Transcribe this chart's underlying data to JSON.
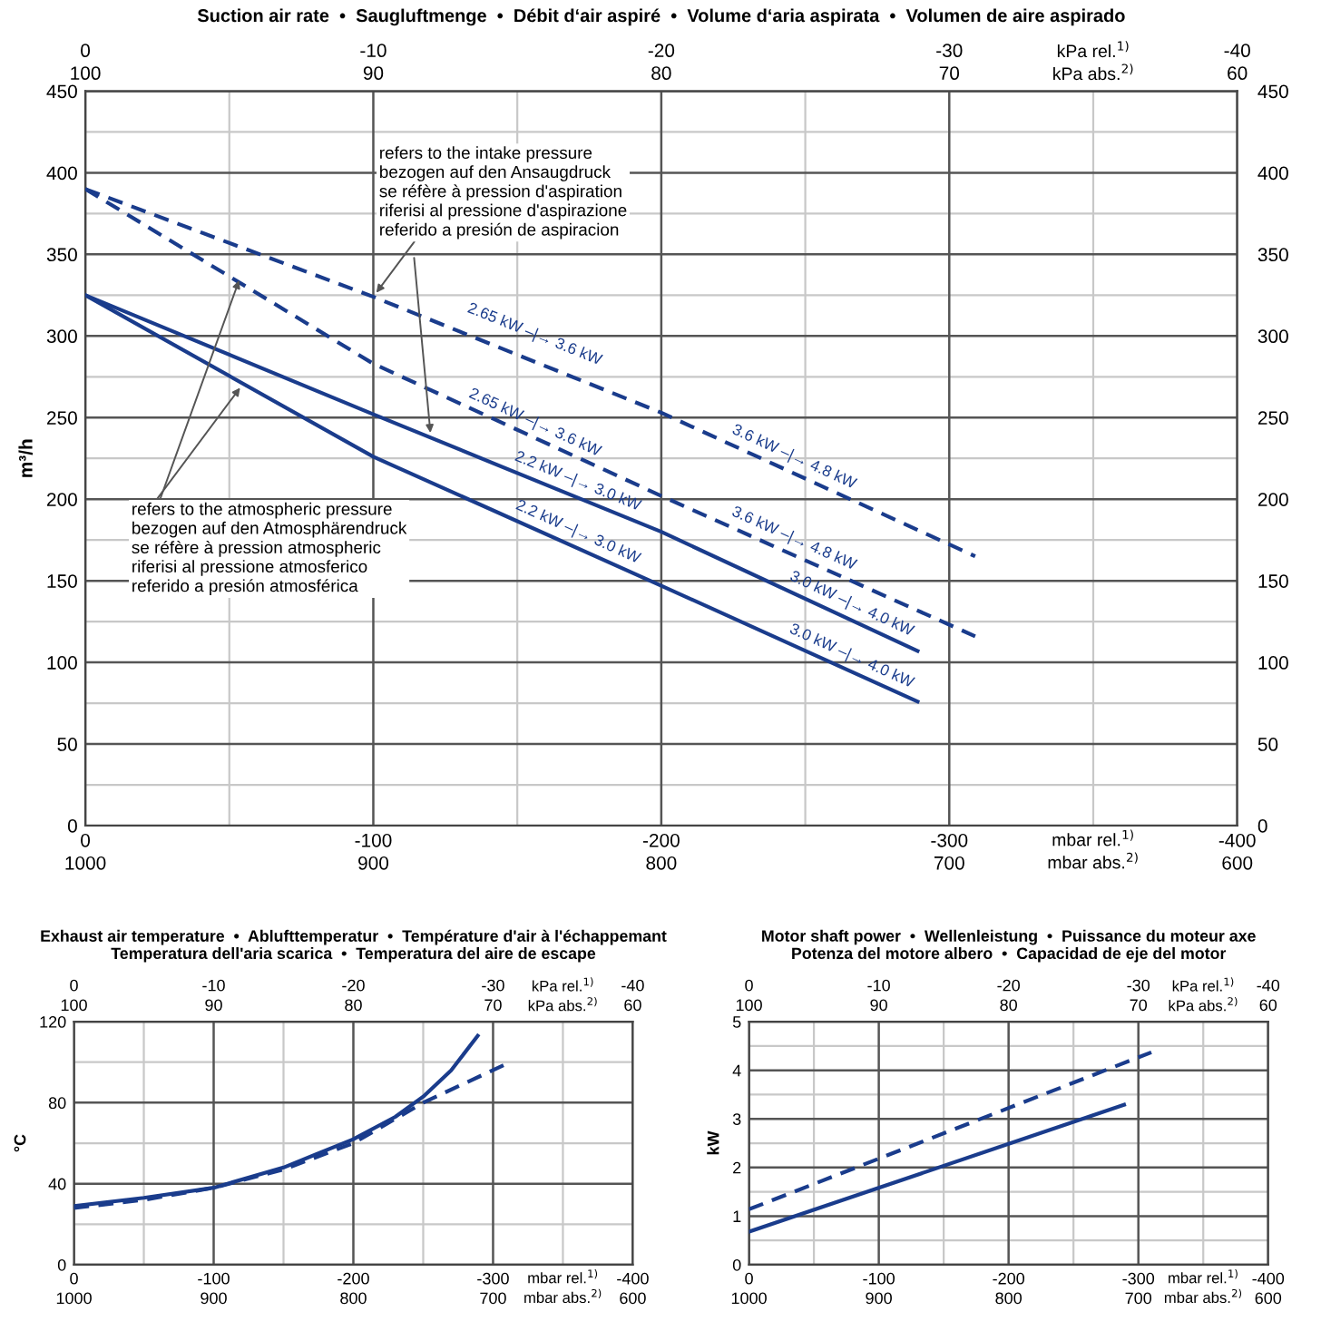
{
  "chart_data": [
    {
      "type": "line",
      "title": "Suction air rate  •  Saugluftmenge  •  Débit d‘air aspiré  •  Volume d‘aria aspirata  •  Volumen de aire aspirado",
      "xlabel": "mbar rel.$^{1)}$",
      "x2label": "kPa rel.$^{1)}$",
      "ylabel": "m³/h",
      "xlim": [
        0,
        -400
      ],
      "xticks": [
        0,
        -100,
        -200,
        -300,
        -400
      ],
      "x2lim": [
        0,
        -40
      ],
      "x2ticks": [
        0,
        -10,
        -20,
        -30,
        -40
      ],
      "ylim": [
        0,
        450
      ],
      "yticks": [
        0,
        50,
        100,
        150,
        200,
        250,
        300,
        350,
        400,
        450
      ],
      "y2lim": [
        0,
        450
      ],
      "y2ticks": [
        0,
        50,
        100,
        150,
        200,
        250,
        300,
        350,
        400,
        450
      ],
      "grid": true,
      "series": [
        {
          "color": "#1a3c8c",
          "line_style": "dashed",
          "x": [
            0,
            -100,
            -200,
            -309
          ],
          "values": [
            390,
            324,
            253,
            165
          ]
        },
        {
          "color": "#1a3c8c",
          "line_style": "dashed",
          "x": [
            0,
            -100,
            -200,
            -309
          ],
          "values": [
            390,
            283,
            202,
            116
          ]
        },
        {
          "color": "#1a3c8c",
          "line_style": "solid",
          "x": [
            0,
            -100,
            -200,
            -289
          ],
          "values": [
            325,
            252,
            180,
            107
          ]
        },
        {
          "color": "#1a3c8c",
          "line_style": "solid",
          "x": [
            0,
            -100,
            -200,
            -289
          ],
          "values": [
            325,
            226,
            147,
            76
          ]
        }
      ],
      "annotations": [
        "1000",
        "900",
        "800",
        "700",
        "600",
        "mbar abs.$^{2)}$",
        "100",
        "90",
        "80",
        "70",
        "60",
        "kPa abs.$^{2)}$",
        {
          "text": "2.65 kW –|→ 3.6 kW",
          "x": -155,
          "y": 292
        },
        {
          "text": "2.65 kW –|→ 3.6 kW",
          "x": -155,
          "y": 238
        },
        {
          "text": "3.6 kW –|→ 4.8 kW",
          "x": -245,
          "y": 217
        },
        {
          "text": "3.6 kW –|→ 4.8 kW",
          "x": -245,
          "y": 167
        },
        {
          "text": "2.2 kW –|→ 3.0 kW",
          "x": -170,
          "y": 202
        },
        {
          "text": "2.2 kW –|→ 3.0 kW",
          "x": -170,
          "y": 171
        },
        {
          "text": "3.0 kW –|→ 4.0 kW",
          "x": -265,
          "y": 127
        },
        {
          "text": "3.0 kW –|→ 4.0 kW",
          "x": -265,
          "y": 95
        },
        {
          "text": "refers to the intake pressure\nbezogen auf den Ansaugdruck\nse réfère à pression d'aspiration\nriferisi al pressione d'aspirazione\nreferido a presión de aspiracion",
          "x": -100,
          "y": 324
        },
        {
          "text": "refers to the atmospheric pressure\nbezogen auf den Atmosphärendruck\nse réfère à pression atmospheric\nriferisi al pressione atmosferico\nreferido a presión atmosférica",
          "x": -54,
          "y": 337
        }
      ]
    },
    {
      "type": "line",
      "title": "Exhaust air temperature  •  Ablufttemperatur  •  Température d'air à l'échappemant\nTemperatura dell'aria scarica  •  Temperatura del aire de escape",
      "xlabel": "mbar rel.$^{1)}$",
      "x2label": "kPa rel.$^{1)}$",
      "ylabel": "°C",
      "xlim": [
        0,
        -400
      ],
      "xticks": [
        0,
        -100,
        -200,
        -300,
        -400
      ],
      "x2lim": [
        0,
        -40
      ],
      "x2ticks": [
        0,
        -10,
        -20,
        -30,
        -40
      ],
      "ylim": [
        0,
        120
      ],
      "yticks": [
        0,
        40,
        80,
        120
      ],
      "grid": true,
      "series": [
        {
          "color": "#1a3c8c",
          "line_style": "solid",
          "x": [
            0,
            -50,
            -100,
            -150,
            -200,
            -230,
            -250,
            -270,
            -289
          ],
          "values": [
            29,
            33,
            38,
            48,
            62,
            73,
            83,
            96,
            113
          ]
        },
        {
          "color": "#1a3c8c",
          "line_style": "dashed",
          "x": [
            0,
            -50,
            -100,
            -150,
            -200,
            -250,
            -309
          ],
          "values": [
            28,
            32,
            38,
            47,
            60,
            80,
            99
          ]
        }
      ],
      "annotations": [
        "1000",
        "900",
        "800",
        "700",
        "600",
        "mbar abs.$^{2)}$",
        "100",
        "90",
        "80",
        "70",
        "60",
        "kPa abs.$^{2)}$"
      ]
    },
    {
      "type": "line",
      "title": "Motor shaft power  •  Wellenleistung  •  Puissance du moteur axe\nPotenza del motore albero  •  Capacidad de eje del motor",
      "xlabel": "mbar rel.$^{1)}$",
      "x2label": "kPa rel.$^{1)}$",
      "ylabel": "kW",
      "xlim": [
        0,
        -400
      ],
      "xticks": [
        0,
        -100,
        -200,
        -300,
        -400
      ],
      "x2lim": [
        0,
        -40
      ],
      "x2ticks": [
        0,
        -10,
        -20,
        -30,
        -40
      ],
      "ylim": [
        0,
        5
      ],
      "yticks": [
        0,
        1,
        2,
        3,
        4,
        5
      ],
      "grid": true,
      "series": [
        {
          "color": "#1a3c8c",
          "line_style": "solid",
          "x": [
            0,
            -289
          ],
          "values": [
            0.68,
            3.29
          ]
        },
        {
          "color": "#1a3c8c",
          "line_style": "dashed",
          "x": [
            0,
            -310
          ],
          "values": [
            1.14,
            4.37
          ]
        }
      ],
      "annotations": [
        "1000",
        "900",
        "800",
        "700",
        "600",
        "mbar abs.$^{2)}$",
        "100",
        "90",
        "80",
        "70",
        "60",
        "kPa abs.$^{2)}$"
      ]
    }
  ]
}
